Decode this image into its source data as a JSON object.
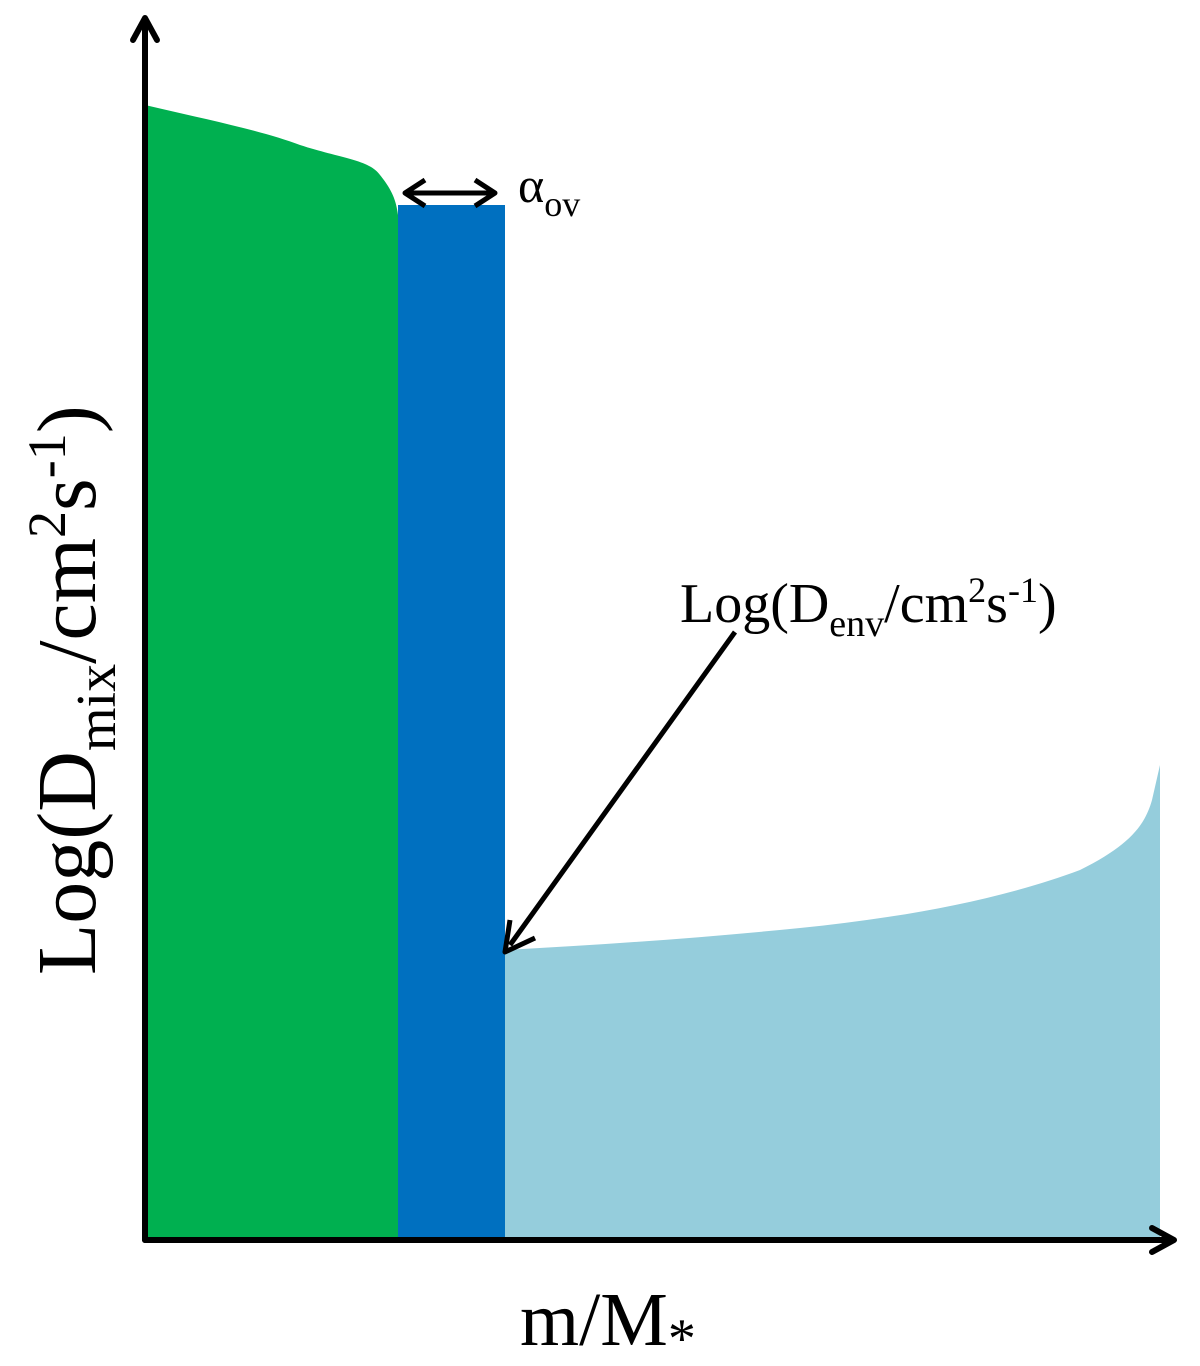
{
  "y_axis_label": {
    "prefix": "Log(D",
    "subscript": "mix",
    "unit": "/cm",
    "power": "2",
    "unit2": "s",
    "power2": "-1",
    "suffix": ")"
  },
  "x_axis_label": {
    "text": "m/M",
    "subscript": "*"
  },
  "overshoot_label": {
    "symbol": "α",
    "subscript": "ov"
  },
  "envelope_label": {
    "prefix": "Log(D",
    "subscript": "env",
    "unit": "/cm",
    "power": "2",
    "unit2": "s",
    "power2": "-1",
    "suffix": ")"
  }
}
